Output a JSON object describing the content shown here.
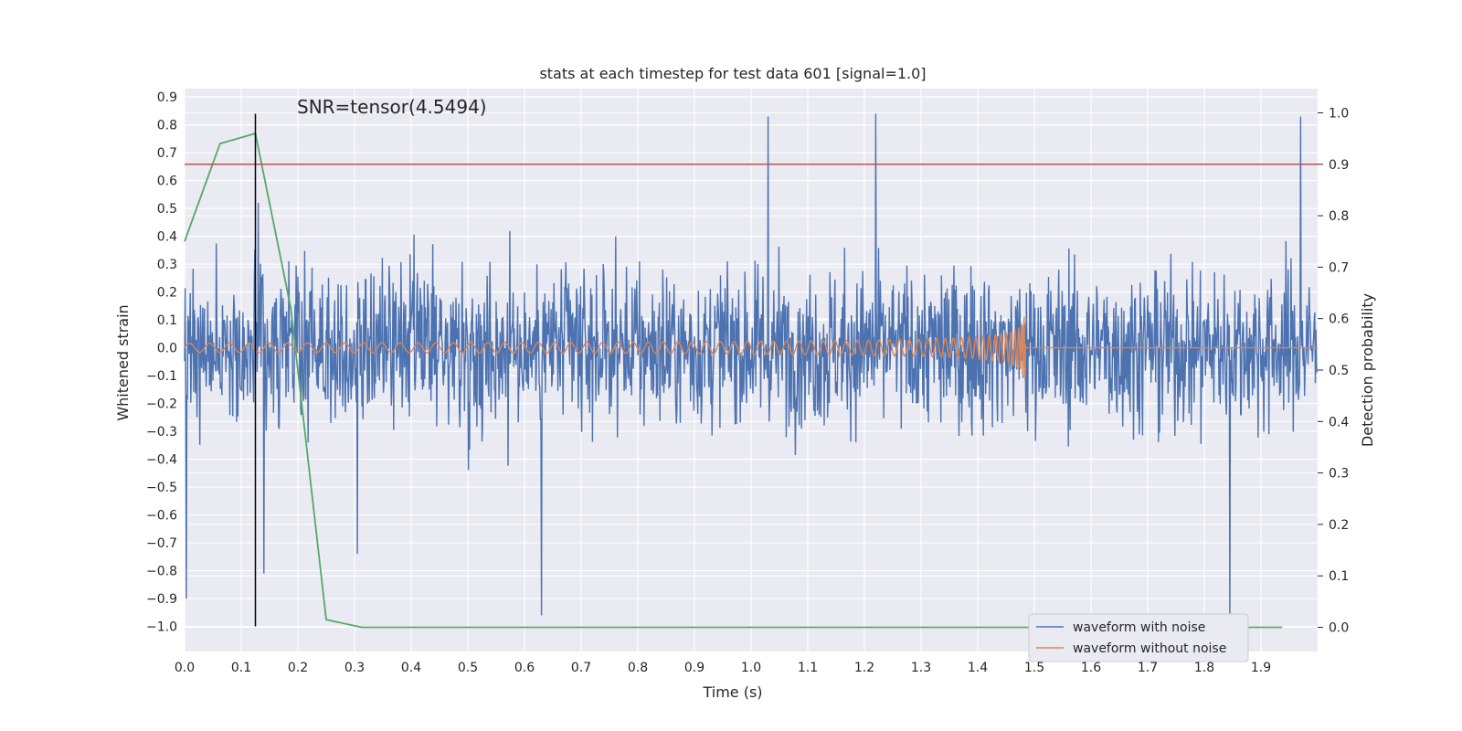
{
  "chart_data": {
    "type": "line",
    "title": "stats at each timestep for test data 601 [signal=1.0]",
    "xlabel": "Time (s)",
    "ylabel": "Whitened strain",
    "y2label": "Detection probability",
    "annotation": "SNR=tensor(4.5494)",
    "xlim": [
      0.0,
      2.0
    ],
    "ylim": [
      -1.09,
      0.93
    ],
    "y2lim": [
      -0.047,
      1.047
    ],
    "x_ticks": [
      "0.0",
      "0.1",
      "0.2",
      "0.3",
      "0.4",
      "0.5",
      "0.6",
      "0.7",
      "0.8",
      "0.9",
      "1.0",
      "1.1",
      "1.2",
      "1.3",
      "1.4",
      "1.5",
      "1.6",
      "1.7",
      "1.8",
      "1.9"
    ],
    "y_ticks": [
      "0.9",
      "0.8",
      "0.7",
      "0.6",
      "0.5",
      "0.4",
      "0.3",
      "0.2",
      "0.1",
      "0.0",
      "−0.1",
      "−0.2",
      "−0.3",
      "−0.4",
      "−0.5",
      "−0.6",
      "−0.7",
      "−0.8",
      "−0.9",
      "−1.0"
    ],
    "y2_ticks": [
      "1.0",
      "0.9",
      "0.8",
      "0.7",
      "0.6",
      "0.5",
      "0.4",
      "0.3",
      "0.2",
      "0.1",
      "0.0"
    ],
    "series": [
      {
        "name": "waveform with noise",
        "color": "#4c72b0",
        "description": "noisy whitened strain sampled over 0–2 s, roughly within ±0.6 with spikes to 0.84 and −1.0"
      },
      {
        "name": "waveform without noise",
        "color": "#dd8452",
        "description": "chirp signal growing in amplitude and frequency until merger at ~1.48 s, then 0"
      },
      {
        "name": "detection probability",
        "color": "#55a868",
        "axis": "right",
        "x": [
          0.0,
          0.0625,
          0.125,
          0.1875,
          0.25,
          0.3125,
          1.9375
        ],
        "values": [
          0.75,
          0.94,
          0.96,
          0.62,
          0.015,
          0.0,
          0.0
        ]
      }
    ],
    "threshold_line": {
      "value": 0.9,
      "axis": "right",
      "color": "#c44e52"
    },
    "marker_line": {
      "x": 0.125,
      "color": "#000000",
      "ymin": -1.0,
      "ymax": 0.84
    },
    "legend": {
      "placement": "lower-right",
      "entries": [
        {
          "label": "waveform with noise",
          "color": "#4c72b0"
        },
        {
          "label": "waveform without noise",
          "color": "#dd8452"
        }
      ]
    },
    "grid": true,
    "background": "#eaeaf2"
  }
}
